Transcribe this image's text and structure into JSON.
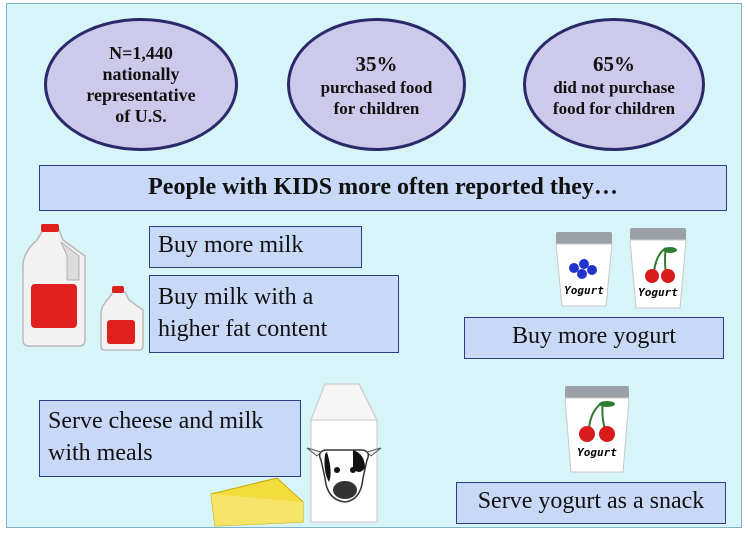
{
  "stats": [
    {
      "lines": [
        "N=1,440",
        "nationally",
        "representative",
        "of U.S."
      ]
    },
    {
      "headline": "35%",
      "lines": [
        "purchased food",
        "for children"
      ]
    },
    {
      "headline": "65%",
      "lines": [
        "did not purchase",
        "food for children"
      ]
    }
  ],
  "banner": "People with KIDS more often reported they…",
  "findings": {
    "buy_more_milk": "Buy more milk",
    "buy_milk_fat_line1": "Buy milk with a",
    "buy_milk_fat_line2": "higher fat content",
    "buy_more_yogurt": "Buy more yogurt",
    "serve_cheese_line1": "Serve cheese and milk",
    "serve_cheese_line2": "with meals",
    "serve_yogurt": "Serve yogurt as a snack"
  },
  "yogurt_label": "Yogurt",
  "colors": {
    "background": "#d7f4f9",
    "oval_fill": "#ccc9ea",
    "oval_border": "#2a2a6a",
    "box_fill": "#c7d9f7",
    "box_border": "#2e3e88",
    "jug_cap": "#e01f1f",
    "cheese": "#f3dc3c"
  },
  "icons": [
    "milk-jug-icon",
    "milk-carton-icon",
    "cheese-icon",
    "blueberry-yogurt-icon",
    "cherry-yogurt-icon"
  ]
}
